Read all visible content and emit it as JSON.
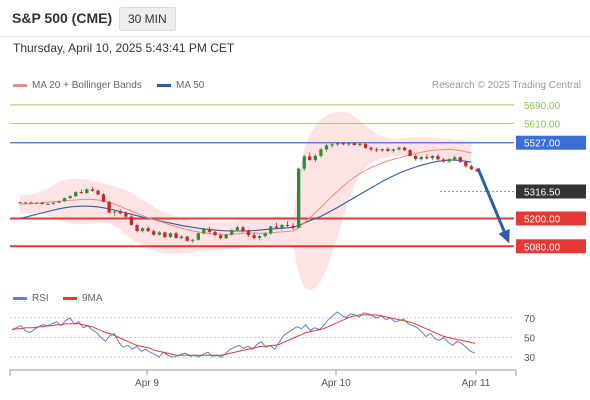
{
  "header": {
    "title": "S&P 500 (CME)",
    "interval": "30 MIN",
    "datetime": "Thursday, April 10, 2025 5:43:41 PM CET",
    "credit": "Research © 2025 Trading Central"
  },
  "colors": {
    "ma20": "#f28b82",
    "ma50": "#2e5da8",
    "bollinger_fill": "#fde3e3",
    "bull": "#2e8b3a",
    "bear": "#c62828",
    "support": "#e53935",
    "resistance": "#3c6fd6",
    "target": "#8bc34a",
    "rsi": "#5c7fd8",
    "rsi_ma": "#e53935",
    "arrow": "#2e5da8"
  },
  "legend": {
    "ma20": "MA 20 + Bollinger Bands",
    "ma50": "MA 50",
    "rsi": "RSI",
    "rsi_ma": "9MA"
  },
  "chart_data": [
    {
      "type": "candlestick",
      "title": "S&P 500 (CME)",
      "ylim": [
        4900,
        5720
      ],
      "x_ticks": [
        "Apr 9",
        "Apr 10",
        "Apr 11"
      ],
      "candles": [
        [
          5270,
          5272,
          5266,
          5267
        ],
        [
          5267,
          5272,
          5264,
          5269
        ],
        [
          5269,
          5273,
          5265,
          5266
        ],
        [
          5266,
          5270,
          5262,
          5268
        ],
        [
          5268,
          5271,
          5261,
          5262
        ],
        [
          5262,
          5266,
          5258,
          5264
        ],
        [
          5264,
          5270,
          5260,
          5268
        ],
        [
          5268,
          5276,
          5266,
          5274
        ],
        [
          5274,
          5290,
          5272,
          5288
        ],
        [
          5288,
          5300,
          5284,
          5296
        ],
        [
          5296,
          5318,
          5293,
          5314
        ],
        [
          5314,
          5325,
          5306,
          5310
        ],
        [
          5310,
          5330,
          5305,
          5326
        ],
        [
          5326,
          5336,
          5315,
          5320
        ],
        [
          5320,
          5325,
          5300,
          5304
        ],
        [
          5304,
          5310,
          5270,
          5272
        ],
        [
          5272,
          5276,
          5220,
          5226
        ],
        [
          5226,
          5236,
          5211,
          5230
        ],
        [
          5230,
          5240,
          5218,
          5222
        ],
        [
          5222,
          5230,
          5200,
          5208
        ],
        [
          5208,
          5214,
          5168,
          5172
        ],
        [
          5172,
          5178,
          5140,
          5146
        ],
        [
          5146,
          5162,
          5140,
          5158
        ],
        [
          5158,
          5166,
          5142,
          5145
        ],
        [
          5145,
          5152,
          5125,
          5130
        ],
        [
          5130,
          5146,
          5126,
          5140
        ],
        [
          5140,
          5144,
          5116,
          5120
        ],
        [
          5120,
          5140,
          5116,
          5136
        ],
        [
          5136,
          5142,
          5112,
          5116
        ],
        [
          5116,
          5128,
          5110,
          5122
        ],
        [
          5122,
          5126,
          5100,
          5104
        ],
        [
          5104,
          5112,
          5094,
          5108
        ],
        [
          5108,
          5140,
          5105,
          5136
        ],
        [
          5136,
          5160,
          5131,
          5155
        ],
        [
          5155,
          5164,
          5136,
          5142
        ],
        [
          5142,
          5152,
          5122,
          5128
        ],
        [
          5128,
          5135,
          5110,
          5115
        ],
        [
          5115,
          5134,
          5111,
          5130
        ],
        [
          5130,
          5154,
          5126,
          5150
        ],
        [
          5150,
          5170,
          5146,
          5162
        ],
        [
          5162,
          5168,
          5140,
          5146
        ],
        [
          5146,
          5152,
          5120,
          5128
        ],
        [
          5128,
          5140,
          5110,
          5116
        ],
        [
          5116,
          5130,
          5105,
          5124
        ],
        [
          5124,
          5140,
          5118,
          5136
        ],
        [
          5136,
          5170,
          5130,
          5166
        ],
        [
          5166,
          5182,
          5158,
          5160
        ],
        [
          5160,
          5176,
          5150,
          5172
        ],
        [
          5172,
          5188,
          5164,
          5168
        ],
        [
          5168,
          5180,
          5150,
          5160
        ],
        [
          5160,
          5420,
          5158,
          5415
        ],
        [
          5415,
          5475,
          5405,
          5468
        ],
        [
          5468,
          5485,
          5450,
          5452
        ],
        [
          5452,
          5478,
          5444,
          5470
        ],
        [
          5470,
          5505,
          5462,
          5498
        ],
        [
          5498,
          5522,
          5488,
          5515
        ],
        [
          5515,
          5530,
          5505,
          5520
        ],
        [
          5520,
          5532,
          5512,
          5526
        ],
        [
          5526,
          5530,
          5516,
          5520
        ],
        [
          5520,
          5528,
          5512,
          5524
        ],
        [
          5524,
          5530,
          5514,
          5517
        ],
        [
          5517,
          5526,
          5510,
          5522
        ],
        [
          5522,
          5528,
          5500,
          5505
        ],
        [
          5505,
          5512,
          5490,
          5498
        ],
        [
          5498,
          5506,
          5486,
          5494
        ],
        [
          5494,
          5502,
          5486,
          5500
        ],
        [
          5500,
          5508,
          5488,
          5492
        ],
        [
          5492,
          5502,
          5484,
          5498
        ],
        [
          5498,
          5512,
          5494,
          5506
        ],
        [
          5506,
          5510,
          5490,
          5495
        ],
        [
          5495,
          5500,
          5466,
          5470
        ],
        [
          5470,
          5476,
          5450,
          5456
        ],
        [
          5456,
          5470,
          5450,
          5466
        ],
        [
          5466,
          5478,
          5454,
          5460
        ],
        [
          5460,
          5474,
          5452,
          5470
        ],
        [
          5470,
          5478,
          5450,
          5455
        ],
        [
          5455,
          5462,
          5440,
          5446
        ],
        [
          5446,
          5460,
          5438,
          5456
        ],
        [
          5456,
          5472,
          5448,
          5464
        ],
        [
          5464,
          5468,
          5440,
          5444
        ],
        [
          5444,
          5450,
          5420,
          5426
        ],
        [
          5426,
          5432,
          5408,
          5412
        ],
        [
          5412,
          5420,
          5400,
          5404
        ]
      ],
      "ma20": [
        5262,
        5263,
        5264,
        5266,
        5268,
        5270,
        5272,
        5274,
        5276,
        5278,
        5280,
        5282,
        5283,
        5282,
        5280,
        5276,
        5270,
        5262,
        5252,
        5242,
        5232,
        5222,
        5212,
        5203,
        5195,
        5188,
        5180,
        5172,
        5165,
        5158,
        5152,
        5146,
        5142,
        5138,
        5135,
        5133,
        5132,
        5131,
        5132,
        5134,
        5136,
        5137,
        5137,
        5136,
        5136,
        5138,
        5140,
        5142,
        5144,
        5145,
        5160,
        5182,
        5203,
        5225,
        5248,
        5272,
        5296,
        5318,
        5340,
        5360,
        5378,
        5394,
        5408,
        5420,
        5430,
        5440,
        5448,
        5455,
        5462,
        5468,
        5474,
        5480,
        5486,
        5490,
        5494,
        5496,
        5497,
        5498,
        5496,
        5493,
        5488,
        5483
      ],
      "ma50": [
        5200,
        5206,
        5212,
        5218,
        5224,
        5230,
        5236,
        5242,
        5246,
        5250,
        5252,
        5253,
        5253,
        5252,
        5250,
        5246,
        5242,
        5236,
        5230,
        5224,
        5218,
        5212,
        5206,
        5200,
        5195,
        5190,
        5185,
        5180,
        5175,
        5170,
        5166,
        5162,
        5158,
        5155,
        5152,
        5150,
        5148,
        5147,
        5146,
        5146,
        5146,
        5147,
        5148,
        5150,
        5152,
        5154,
        5156,
        5158,
        5160,
        5162,
        5170,
        5180,
        5190,
        5200,
        5210,
        5222,
        5235,
        5248,
        5262,
        5276,
        5290,
        5304,
        5318,
        5332,
        5346,
        5360,
        5372,
        5384,
        5395,
        5405,
        5414,
        5422,
        5430,
        5436,
        5442,
        5447,
        5450,
        5452,
        5452,
        5450,
        5447,
        5443
      ],
      "bb_upper": [
        5300,
        5302,
        5305,
        5310,
        5318,
        5330,
        5345,
        5358,
        5366,
        5370,
        5372,
        5370,
        5368,
        5364,
        5358,
        5352,
        5345,
        5338,
        5330,
        5320,
        5310,
        5296,
        5280,
        5265,
        5250,
        5238,
        5228,
        5218,
        5208,
        5200,
        5194,
        5190,
        5188,
        5187,
        5186,
        5186,
        5186,
        5186,
        5187,
        5190,
        5194,
        5197,
        5200,
        5202,
        5204,
        5206,
        5207,
        5208,
        5208,
        5208,
        5380,
        5500,
        5560,
        5600,
        5630,
        5645,
        5655,
        5660,
        5660,
        5655,
        5640,
        5620,
        5600,
        5580,
        5565,
        5555,
        5548,
        5545,
        5545,
        5548,
        5550,
        5552,
        5553,
        5552,
        5550,
        5548,
        5545,
        5543,
        5540,
        5538,
        5536,
        5535
      ],
      "bb_lower": [
        5225,
        5225,
        5224,
        5222,
        5218,
        5212,
        5204,
        5195,
        5186,
        5180,
        5176,
        5175,
        5176,
        5178,
        5180,
        5182,
        5178,
        5166,
        5150,
        5130,
        5112,
        5096,
        5082,
        5070,
        5060,
        5054,
        5050,
        5048,
        5048,
        5048,
        5050,
        5052,
        5056,
        5058,
        5060,
        5062,
        5064,
        5066,
        5068,
        5070,
        5072,
        5074,
        5075,
        5075,
        5075,
        5076,
        5078,
        5080,
        5082,
        5084,
        4960,
        4900,
        4890,
        4900,
        4930,
        4980,
        5050,
        5120,
        5200,
        5280,
        5340,
        5390,
        5420,
        5440,
        5452,
        5460,
        5465,
        5468,
        5470,
        5472,
        5472,
        5470,
        5468,
        5466,
        5462,
        5458,
        5455,
        5452,
        5450,
        5448,
        5445,
        5440
      ],
      "levels": [
        {
          "label": "5690.00",
          "value": 5690,
          "kind": "target"
        },
        {
          "label": "5610.00",
          "value": 5610,
          "kind": "target"
        },
        {
          "label": "5527.00",
          "value": 5527,
          "kind": "resistance"
        },
        {
          "label": "5316.50",
          "value": 5316.5,
          "kind": "pivot"
        },
        {
          "label": "5200.00",
          "value": 5200,
          "kind": "support"
        },
        {
          "label": "5080.00",
          "value": 5080,
          "kind": "support"
        }
      ],
      "forecast_arrow": {
        "from": 5416,
        "to": 5105
      }
    },
    {
      "type": "line",
      "title": "RSI",
      "ylim": [
        22,
        78
      ],
      "y_ticks": [
        70,
        50,
        30
      ],
      "series": [
        {
          "name": "RSI",
          "values": [
            58,
            60,
            62,
            57,
            55,
            58,
            61,
            63,
            62,
            64,
            66,
            62,
            67,
            70,
            64,
            66,
            60,
            62,
            58,
            55,
            50,
            46,
            52,
            54,
            45,
            40,
            42,
            38,
            41,
            36,
            38,
            35,
            33,
            30,
            35,
            32,
            30,
            31,
            33,
            34,
            31,
            32,
            30,
            33,
            35,
            31,
            32,
            30,
            34,
            38,
            40,
            42,
            39,
            41,
            38,
            43,
            46,
            40,
            42,
            38,
            45,
            52,
            55,
            58,
            61,
            59,
            63,
            57,
            60,
            58,
            62,
            68,
            72,
            76,
            73,
            70,
            74,
            73,
            71,
            75,
            74,
            72,
            70,
            72,
            68,
            70,
            66,
            67,
            69,
            64,
            62,
            60,
            56,
            51,
            54,
            49,
            47,
            50,
            45,
            42,
            46,
            44,
            40,
            36,
            34
          ]
        },
        {
          "name": "9MA",
          "values": [
            58,
            59,
            59,
            60,
            60,
            60,
            61,
            61,
            62,
            62,
            63,
            63,
            64,
            64,
            64,
            64,
            63,
            62,
            61,
            59,
            57,
            55,
            54,
            52,
            50,
            48,
            46,
            44,
            42,
            41,
            40,
            39,
            37,
            36,
            35,
            34,
            33,
            32,
            32,
            32,
            32,
            32,
            32,
            32,
            32,
            32,
            32,
            32,
            33,
            34,
            35,
            36,
            37,
            38,
            39,
            40,
            41,
            41,
            42,
            42,
            43,
            45,
            47,
            49,
            51,
            53,
            55,
            56,
            57,
            58,
            59,
            61,
            63,
            65,
            67,
            69,
            71,
            72,
            73,
            73,
            73,
            73,
            73,
            72,
            71,
            70,
            69,
            68,
            67,
            66,
            65,
            63,
            61,
            59,
            57,
            55,
            53,
            51,
            50,
            49,
            48,
            47,
            46,
            45,
            44
          ]
        }
      ]
    }
  ]
}
